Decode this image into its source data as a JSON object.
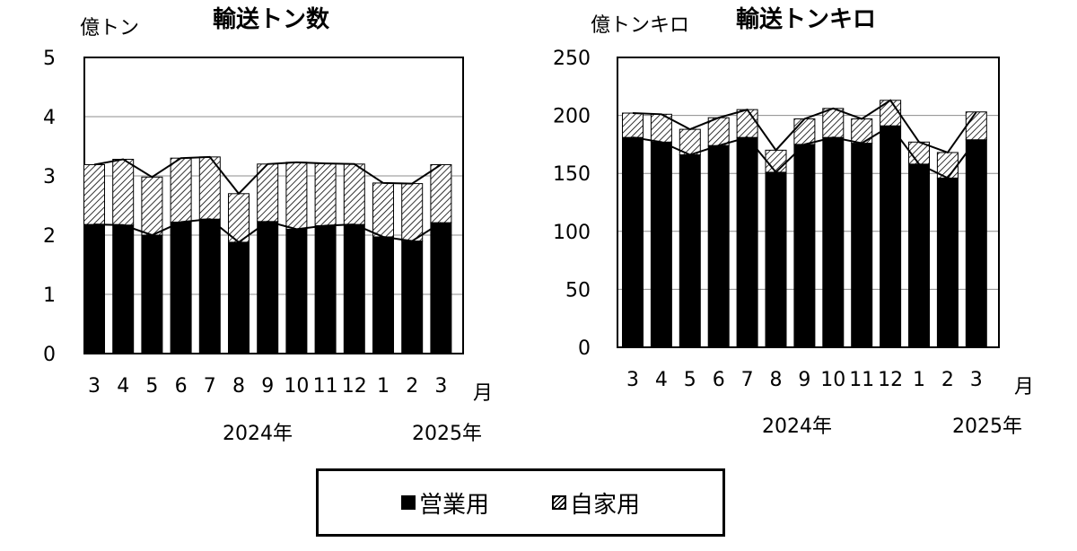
{
  "legend": {
    "items": [
      {
        "label": "営業用",
        "swatch": "solid",
        "color": "#000000"
      },
      {
        "label": "自家用",
        "swatch": "hatched",
        "color": "#ffffff"
      }
    ]
  },
  "chart_data": [
    {
      "type": "bar",
      "stacked": true,
      "title": "輸送トン数",
      "ylabel": "億トン",
      "ylim": [
        0,
        5
      ],
      "yticks": [
        0,
        1,
        2,
        3,
        4,
        5
      ],
      "categories": [
        "3",
        "4",
        "5",
        "6",
        "7",
        "8",
        "9",
        "10",
        "11",
        "12",
        "1",
        "2",
        "3"
      ],
      "xunit": "月",
      "year_labels": [
        "2024年",
        "2025年"
      ],
      "grid": true,
      "series": [
        {
          "name": "営業用",
          "values": [
            2.18,
            2.17,
            2.0,
            2.22,
            2.27,
            1.88,
            2.23,
            2.1,
            2.16,
            2.18,
            1.97,
            1.9,
            2.21
          ]
        },
        {
          "name": "自家用",
          "values": [
            1.01,
            1.11,
            0.98,
            1.08,
            1.05,
            0.82,
            0.97,
            1.13,
            1.05,
            1.02,
            0.91,
            0.97,
            0.98
          ]
        }
      ]
    },
    {
      "type": "bar",
      "stacked": true,
      "title": "輸送トンキロ",
      "ylabel": "億トンキロ",
      "ylim": [
        0,
        250
      ],
      "yticks": [
        0,
        50,
        100,
        150,
        200,
        250
      ],
      "categories": [
        "3",
        "4",
        "5",
        "6",
        "7",
        "8",
        "9",
        "10",
        "11",
        "12",
        "1",
        "2",
        "3"
      ],
      "xunit": "月",
      "year_labels": [
        "2024年",
        "2025年"
      ],
      "grid": true,
      "series": [
        {
          "name": "営業用",
          "values": [
            181,
            177,
            166,
            174,
            181,
            151,
            175,
            181,
            176,
            191,
            158,
            146,
            179
          ]
        },
        {
          "name": "自家用",
          "values": [
            21,
            24,
            22,
            24,
            24,
            19,
            22,
            25,
            21,
            22,
            19,
            22,
            24
          ]
        }
      ]
    }
  ]
}
